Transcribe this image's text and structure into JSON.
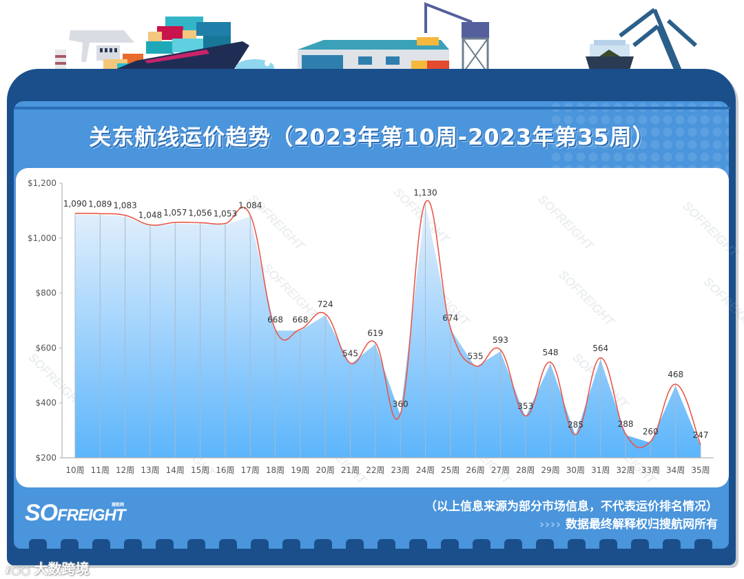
{
  "header": {
    "title": "关东航线运价趋势（2023年第10周-2023年第35周）"
  },
  "footer": {
    "logo_text": "SOFREIGHT",
    "logo_sub": "搜航网",
    "disclaimer": "（以上信息来源为部分市场信息，不代表运价排名情况）",
    "arrows": "››››",
    "copyright": "数据最终解释权归搜航网所有"
  },
  "watermark": {
    "text": "大数跨境",
    "icon": "100-logo-icon",
    "chart_watermark": "SOFREIGHT"
  },
  "colors": {
    "frame": "#1a4f8b",
    "panel": "#4a95dc",
    "line": "#e8574a",
    "area_top": "#e6f1fc",
    "area_bottom": "#5cb5fb"
  },
  "chart_data": {
    "type": "area",
    "title": "关东航线运价趋势（2023年第10周-2023年第35周）",
    "xlabel": "",
    "ylabel": "",
    "ylim": [
      200,
      1200
    ],
    "yticks": [
      200,
      400,
      600,
      800,
      1000,
      1200
    ],
    "ytick_labels": [
      "$200",
      "$400",
      "$600",
      "$800",
      "$1,000",
      "$1,200"
    ],
    "grid": false,
    "legend": "none",
    "categories": [
      "10周",
      "11周",
      "12周",
      "13周",
      "14周",
      "15周",
      "16周",
      "17周",
      "18周",
      "19周",
      "20周",
      "21周",
      "22周",
      "23周",
      "24周",
      "25周",
      "26周",
      "27周",
      "28周",
      "29周",
      "30周",
      "31周",
      "32周",
      "33周",
      "34周",
      "35周"
    ],
    "series": [
      {
        "name": "运价",
        "values": [
          1090,
          1089,
          1083,
          1048,
          1057,
          1056,
          1053,
          1084,
          668,
          668,
          724,
          545,
          619,
          360,
          1130,
          674,
          535,
          593,
          353,
          548,
          285,
          564,
          288,
          260,
          468,
          247
        ]
      }
    ],
    "data_labels": [
      "1,090",
      "1,089",
      "1,083",
      "1,048",
      "1,057",
      "1,056",
      "1,053",
      "1,084",
      "668",
      "668",
      "724",
      "545",
      "619",
      "360",
      "1,130",
      "674",
      "535",
      "593",
      "353",
      "548",
      "285",
      "564",
      "288",
      "260",
      "468",
      "247"
    ]
  }
}
